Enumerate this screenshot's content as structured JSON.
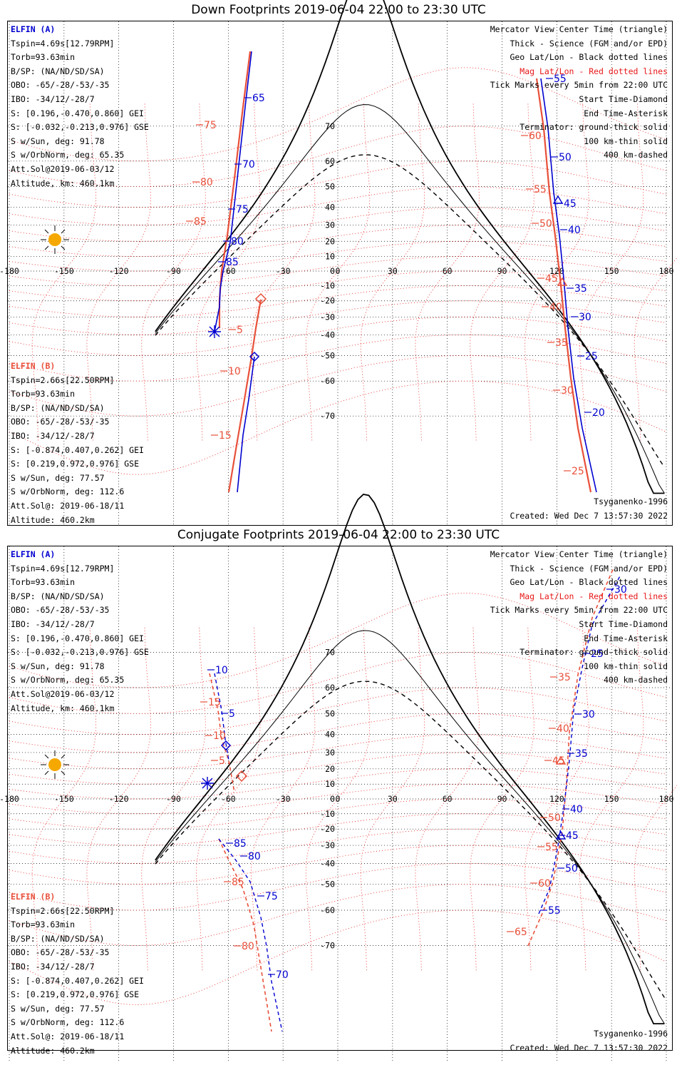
{
  "panels": [
    {
      "title": "Down Footprints 2019-06-04 22:00 to 23:30 UTC",
      "elfin_a_header": "ELFIN (A)",
      "elfin_a_lines": [
        "Tspin=4.69s[12.79RPM]",
        "Torb=93.63min",
        "B/SP: (NA/ND/SD/SA)",
        "OBO: -65/-28/-53/-35",
        "IBO: -34/12/-28/7",
        "S: [0.196,-0.470,0.860] GEI",
        "S: [-0.032,-0.213,0.976] GSE",
        "S w/Sun, deg: 91.78",
        "S w/OrbNorm, deg: 65.35",
        "Att.Sol@2019-06-03/12",
        "Altitude, km: 460.1km"
      ],
      "elfin_b_header": "ELFIN (B)",
      "elfin_b_lines": [
        "Tspin=2.66s[22.50RPM]",
        "Torb=93.63min",
        "B/SP: (NA/ND/SD/SA)",
        "OBO: -65/-28/-53/-35",
        "IBO: -34/12/-28/7",
        "S: [-0.874,0.407,0.262] GEI",
        "S: [0.219,0.972,0.976] GSE",
        "S w/Sun, deg: 77.57",
        "S w/OrbNorm, deg: 112.6",
        "Att.Sol@: 2019-06-18/11",
        "Altitude: 460.2km"
      ],
      "legend_lines": [
        "Mercator View Center Time (triangle)",
        "Thick - Science (FGM and/or EPD)",
        "Geo Lat/Lon - Black dotted lines",
        "Mag Lat/Lon - Red dotted lines",
        "Tick Marks every 5min from 22:00 UTC",
        "Start Time-Diamond",
        "End Time-Asterisk",
        "Terminator: ground-thick solid",
        "100 km-thin solid",
        "400 km-dashed"
      ],
      "model": "Tsyganenko-1996",
      "created": "Created: Wed Dec  7 13:57:30 2022",
      "tick_labels_a": [
        "65",
        "70",
        "75",
        "80",
        "85",
        "55",
        "50",
        "45",
        "40",
        "35",
        "30",
        "25",
        "20"
      ],
      "tick_labels_b": [
        "75",
        "80",
        "85",
        "5",
        "10",
        "15",
        "60",
        "55",
        "50",
        "45",
        "40",
        "35",
        "30",
        "25"
      ]
    },
    {
      "title": "Conjugate Footprints 2019-06-04 22:00 to 23:30 UTC",
      "elfin_a_header": "ELFIN (A)",
      "elfin_a_lines": [
        "Tspin=4.69s[12.79RPM]",
        "Torb=93.63min",
        "B/SP: (NA/ND/SD/SA)",
        "OBO: -65/-28/-53/-35",
        "IBO: -34/12/-28/7",
        "S: [0.196,-0.470,0.860] GEI",
        "S: [-0.032,-0.213,0.976] GSE",
        "S w/Sun, deg: 91.78",
        "S w/OrbNorm, deg: 65.35",
        "Att.Sol@2019-06-03/12",
        "Altitude, km: 460.1km"
      ],
      "elfin_b_header": "ELFIN (B)",
      "elfin_b_lines": [
        "Tspin=2.66s[22.50RPM]",
        "Torb=93.63min",
        "B/SP: (NA/ND/SD/SA)",
        "OBO: -65/-28/-53/-35",
        "IBO: -34/12/-28/7",
        "S: [-0.874,0.407,0.262] GEI",
        "S: [0.219,0.972,0.976] GSE",
        "S w/Sun, deg: 77.57",
        "S w/OrbNorm, deg: 112.6",
        "Att.Sol@: 2019-06-18/11",
        "Altitude: 460.2km"
      ],
      "legend_lines": [
        "Mercator View Center Time (triangle)",
        "Thick - Science (FGM and/or EPD)",
        "Geo Lat/Lon - Black dotted lines",
        "Mag Lat/Lon - Red dotted lines",
        "Tick Marks every 5min from 22:00 UTC",
        "Start Time-Diamond",
        "End Time-Asterisk",
        "Terminator: ground-thick solid",
        "100 km-thin solid",
        "400 km-dashed"
      ],
      "model": "Tsyganenko-1996",
      "created": "Created: Wed Dec  7 13:57:30 2022",
      "tick_labels_a": [
        "10",
        "5",
        "85",
        "80",
        "75",
        "70",
        "30",
        "25",
        "30",
        "35",
        "40",
        "45",
        "50",
        "55"
      ],
      "tick_labels_b": [
        "15",
        "10",
        "5",
        "85",
        "80",
        "35",
        "40",
        "45",
        "50",
        "55",
        "60",
        "65"
      ]
    }
  ],
  "lon_labels": [
    "-180",
    "-150",
    "-120",
    "-90",
    "-60",
    "-30",
    "0",
    "30",
    "60",
    "90",
    "120",
    "150",
    "180"
  ],
  "lat_labels": [
    "70",
    "60",
    "50",
    "40",
    "30",
    "20",
    "10",
    "0",
    "-10",
    "-20",
    "-30",
    "-40",
    "-50",
    "-60",
    "-70"
  ],
  "colors": {
    "elfin_a": "#0000d0",
    "elfin_b": "#e8503a",
    "mag_grid": "#e81818",
    "geo_grid": "#000000",
    "terminator": "#000000"
  },
  "icons": {
    "sun": "sun-icon"
  }
}
